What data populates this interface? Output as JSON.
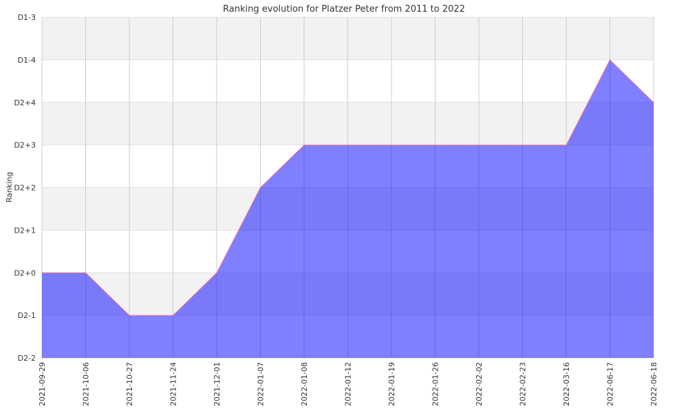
{
  "chart_data": {
    "type": "area",
    "title": "Ranking evolution for Platzer Peter from 2011 to 2022",
    "xlabel": "",
    "ylabel": "Ranking",
    "y_categories": [
      "D2-2",
      "D2-1",
      "D2+0",
      "D2+1",
      "D2+2",
      "D2+3",
      "D2+4",
      "D1-4",
      "D1-3"
    ],
    "x": [
      "2021-09-29",
      "2021-10-06",
      "2021-10-27",
      "2021-11-24",
      "2021-12-01",
      "2022-01-07",
      "2022-01-08",
      "2022-01-12",
      "2022-01-19",
      "2022-01-26",
      "2022-02-02",
      "2022-02-23",
      "2022-03-16",
      "2022-06-17",
      "2022-06-18"
    ],
    "series": [
      {
        "values": [
          "D2+0",
          "D2+0",
          "D2-1",
          "D2-1",
          "D2+0",
          "D2+2",
          "D2+3",
          "D2+3",
          "D2+3",
          "D2+3",
          "D2+3",
          "D2+3",
          "D2+3",
          "D1-4",
          "D2+4"
        ]
      }
    ],
    "grid": true,
    "colors": {
      "fill": "#7b7bfb",
      "line": "#ff7f7f",
      "band": "#f2f2f2",
      "grid": "#cccccc"
    }
  }
}
